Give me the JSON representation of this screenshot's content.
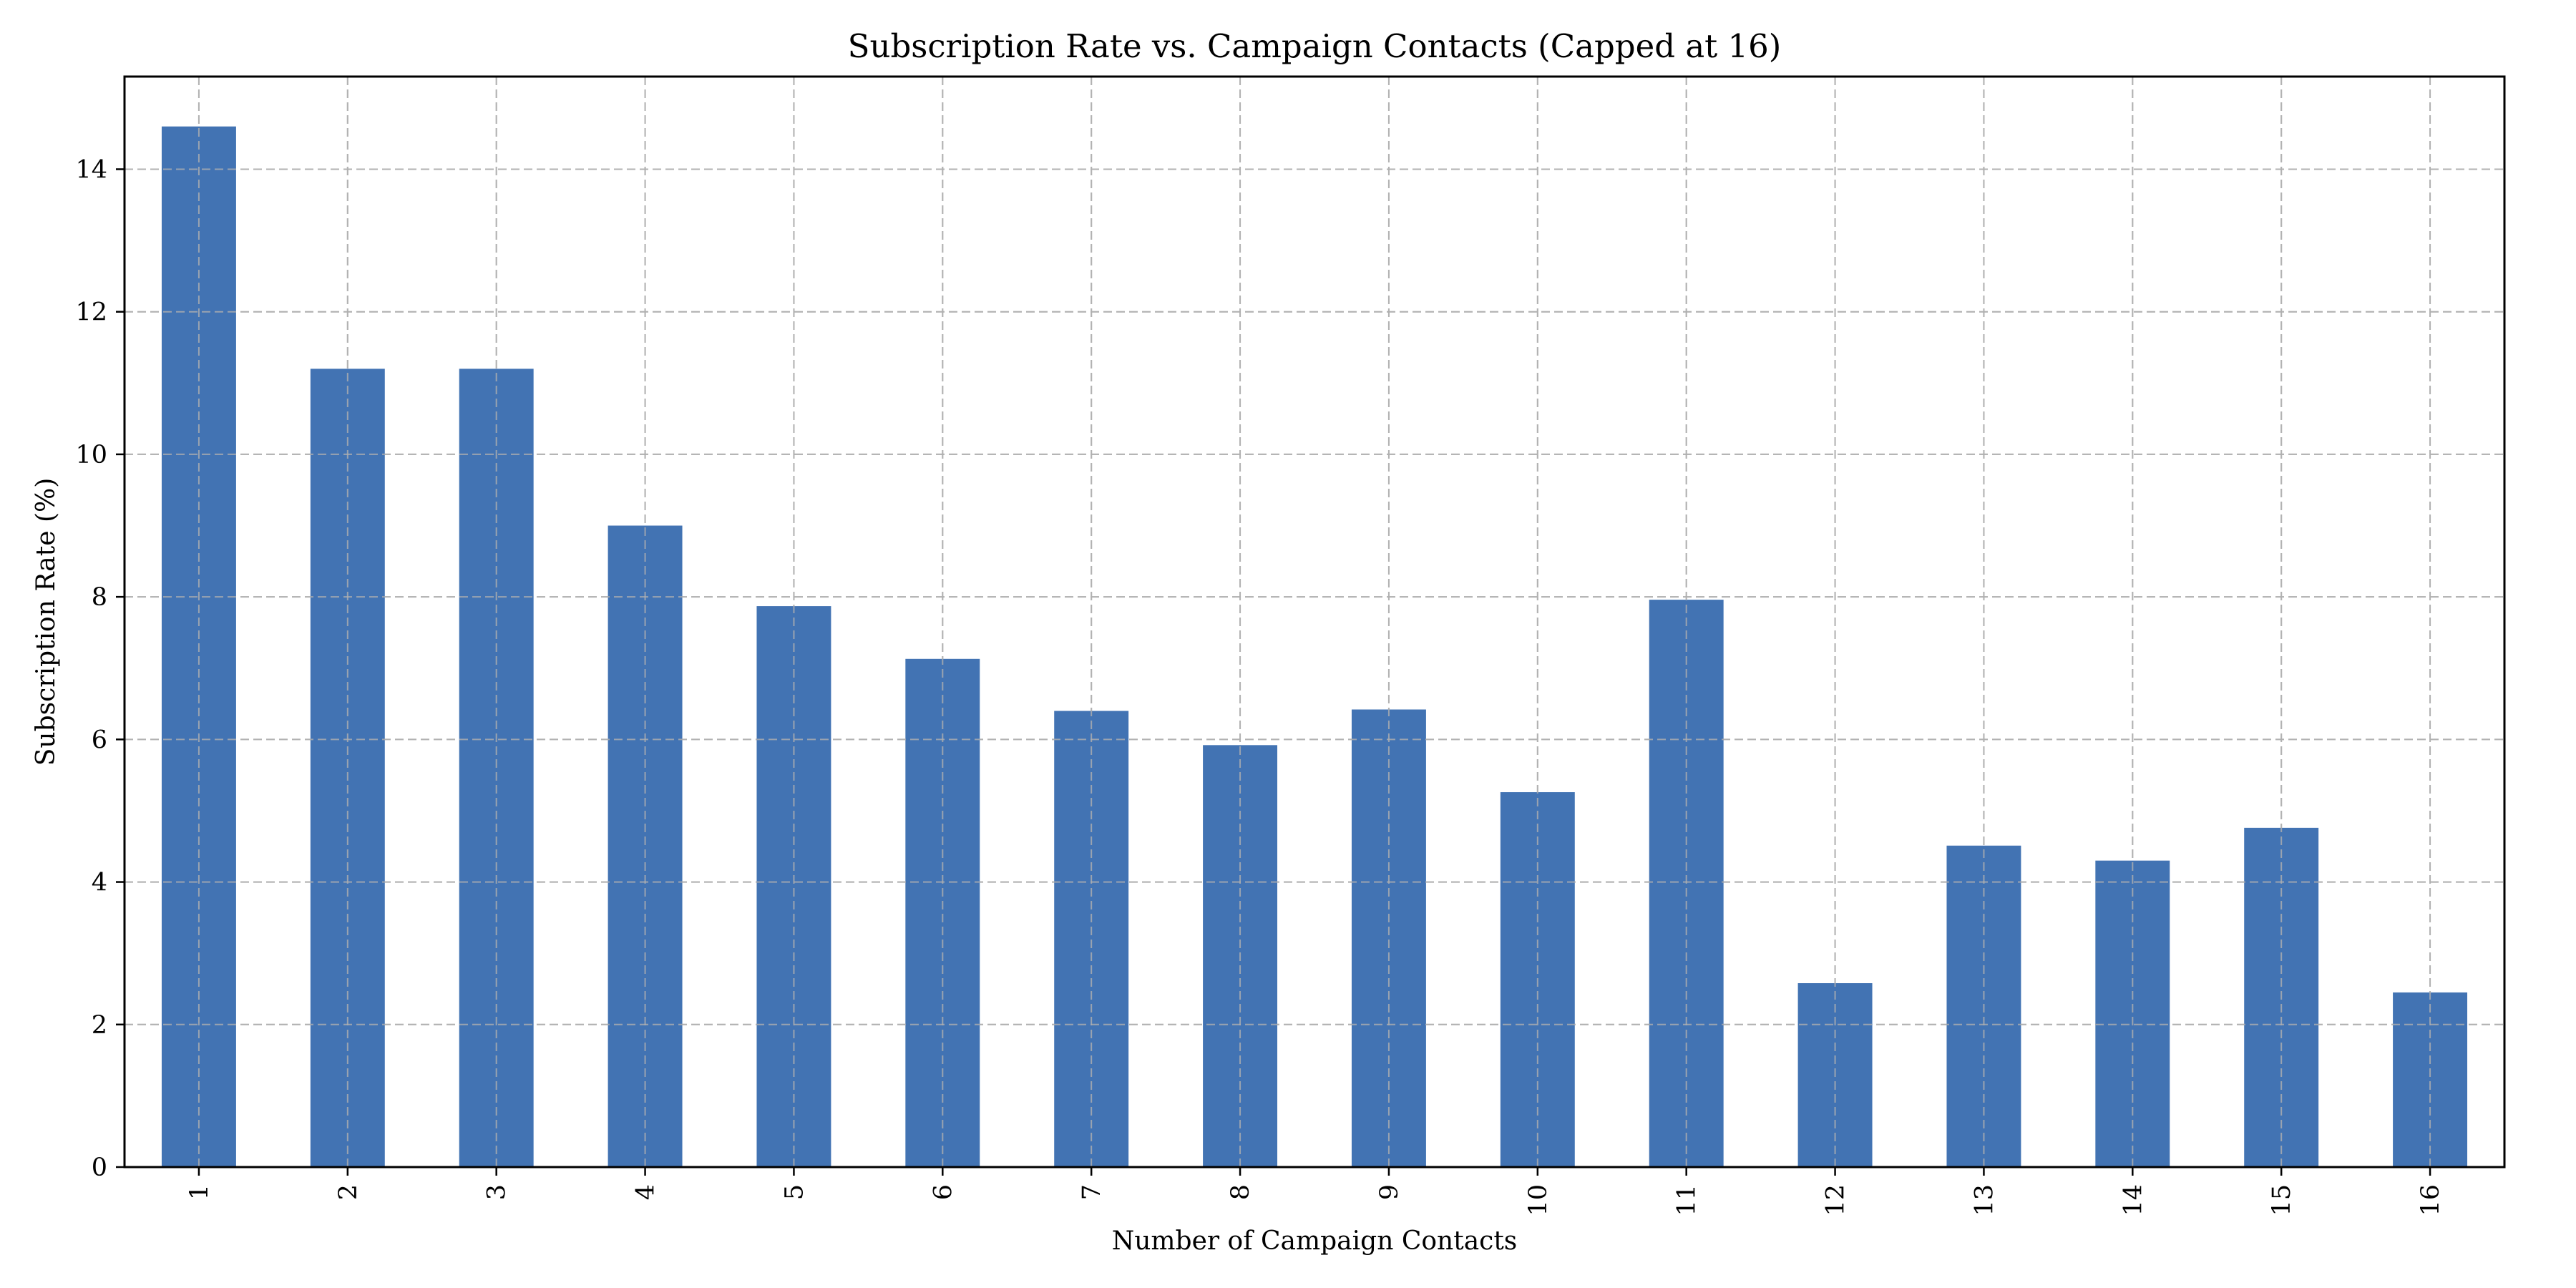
{
  "colors": {
    "bar": "#4273b3",
    "grid": "#b0b0b0",
    "axis": "#000000",
    "background": "#ffffff"
  },
  "chart_data": {
    "type": "bar",
    "title": "Subscription Rate vs. Campaign Contacts (Capped at 16)",
    "xlabel": "Number of Campaign Contacts",
    "ylabel": "Subscription Rate (%)",
    "categories": [
      "1",
      "2",
      "3",
      "4",
      "5",
      "6",
      "7",
      "8",
      "9",
      "10",
      "11",
      "12",
      "13",
      "14",
      "15",
      "16"
    ],
    "values": [
      14.6,
      11.2,
      11.2,
      9.0,
      7.87,
      7.13,
      6.4,
      5.92,
      6.42,
      5.26,
      7.96,
      2.58,
      4.51,
      4.3,
      4.76,
      2.45
    ],
    "ylim": [
      0,
      15.3
    ],
    "yticks": [
      0,
      2,
      4,
      6,
      8,
      10,
      12,
      14
    ],
    "grid": true,
    "legend": "none"
  }
}
